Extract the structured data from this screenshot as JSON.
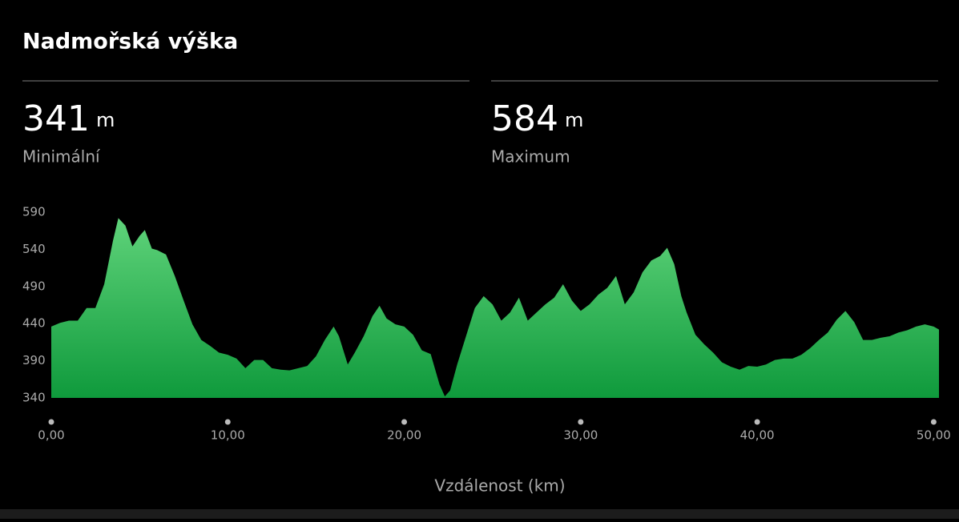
{
  "header": {
    "title": "Nadmořská výška"
  },
  "stats": [
    {
      "value": "341",
      "unit": "m",
      "label": "Minimální"
    },
    {
      "value": "584",
      "unit": "m",
      "label": "Maximum"
    }
  ],
  "chart_data": {
    "type": "area",
    "xlabel": "Vzdálenost (km)",
    "gradient": [
      "#5fd37a",
      "#0f9a3c"
    ],
    "xlim": [
      0,
      50.3
    ],
    "ylim": [
      340,
      590
    ],
    "yticks": [
      340,
      390,
      440,
      490,
      540,
      590
    ],
    "xticks": [
      {
        "value": 0,
        "label": "0,00"
      },
      {
        "value": 10,
        "label": "10,00"
      },
      {
        "value": 20,
        "label": "20,00"
      },
      {
        "value": 30,
        "label": "30,00"
      },
      {
        "value": 40,
        "label": "40,00"
      },
      {
        "value": 50,
        "label": "50,00"
      }
    ],
    "x": [
      0,
      0.5,
      1,
      1.5,
      2,
      2.5,
      3,
      3.5,
      3.8,
      4.2,
      4.6,
      5,
      5.3,
      5.7,
      6,
      6.5,
      7,
      7.5,
      8,
      8.5,
      9,
      9.5,
      10,
      10.5,
      11,
      11.5,
      12,
      12.5,
      13,
      13.5,
      14,
      14.5,
      15,
      15.5,
      16,
      16.3,
      16.8,
      17.2,
      17.7,
      18.2,
      18.6,
      19,
      19.5,
      20,
      20.5,
      21,
      21.5,
      22,
      22.3,
      22.6,
      23,
      23.5,
      24,
      24.5,
      25,
      25.5,
      26,
      26.5,
      27,
      27.5,
      28,
      28.5,
      29,
      29.5,
      30,
      30.5,
      31,
      31.5,
      32,
      32.5,
      33,
      33.5,
      34,
      34.5,
      34.9,
      35.3,
      35.7,
      36,
      36.5,
      37,
      37.5,
      38,
      38.5,
      39,
      39.5,
      40,
      40.5,
      41,
      41.5,
      42,
      42.5,
      43,
      43.5,
      44,
      44.5,
      45,
      45.5,
      46,
      46.5,
      47,
      47.5,
      48,
      48.5,
      49,
      49.5,
      50,
      50.3
    ],
    "values": [
      436,
      441,
      444,
      444,
      461,
      461,
      493,
      552,
      582,
      572,
      544,
      558,
      566,
      541,
      539,
      533,
      504,
      471,
      439,
      418,
      410,
      401,
      398,
      393,
      380,
      391,
      391,
      380,
      378,
      377,
      380,
      383,
      396,
      418,
      436,
      423,
      385,
      401,
      423,
      450,
      464,
      447,
      439,
      436,
      425,
      404,
      399,
      358,
      342,
      350,
      385,
      423,
      461,
      477,
      466,
      444,
      455,
      475,
      444,
      455,
      466,
      475,
      493,
      471,
      457,
      466,
      479,
      488,
      504,
      466,
      482,
      509,
      525,
      531,
      542,
      520,
      477,
      455,
      425,
      412,
      401,
      388,
      382,
      378,
      383,
      382,
      385,
      391,
      393,
      393,
      398,
      407,
      418,
      428,
      445,
      457,
      442,
      418,
      418,
      421,
      423,
      428,
      431,
      436,
      439,
      436,
      432
    ]
  }
}
